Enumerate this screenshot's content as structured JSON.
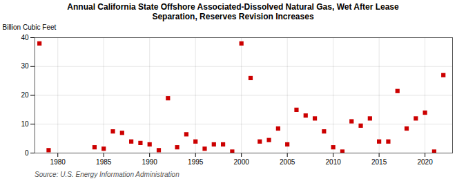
{
  "chart_data": {
    "type": "scatter",
    "title": "Annual California State Offshore Associated-Dissolved Natural Gas, Wet After Lease\nSeparation, Reserves Revision Increases",
    "ylabel": "Billion Cubic Feet",
    "source": "Source: U.S. Energy Information Administration",
    "x": [
      1978,
      1979,
      1984,
      1985,
      1986,
      1987,
      1988,
      1989,
      1990,
      1991,
      1992,
      1993,
      1994,
      1995,
      1996,
      1997,
      1998,
      1999,
      2000,
      2001,
      2002,
      2003,
      2004,
      2005,
      2006,
      2007,
      2008,
      2009,
      2010,
      2011,
      2012,
      2013,
      2014,
      2015,
      2016,
      2017,
      2018,
      2019,
      2020,
      2021,
      2022
    ],
    "values": [
      38.0,
      1.0,
      2.0,
      1.5,
      7.5,
      7.0,
      4.0,
      3.5,
      3.0,
      1.0,
      19.0,
      2.0,
      6.5,
      4.0,
      1.5,
      3.0,
      3.0,
      0.5,
      38.0,
      26.0,
      4.0,
      4.5,
      8.5,
      3.0,
      15.0,
      13.0,
      12.0,
      7.5,
      2.0,
      0.5,
      11.0,
      9.5,
      12.0,
      4.0,
      4.0,
      21.5,
      8.5,
      12.0,
      14.0,
      0.5,
      27.0
    ],
    "color": "#CC0000",
    "marker": "square",
    "xlim": [
      1977.5,
      2023
    ],
    "xticks": [
      1980,
      1985,
      1990,
      1995,
      2000,
      2005,
      2010,
      2015,
      2020
    ],
    "ylim": [
      0,
      40
    ],
    "yticks": [
      0,
      10,
      20,
      30,
      40
    ],
    "grid": true
  }
}
